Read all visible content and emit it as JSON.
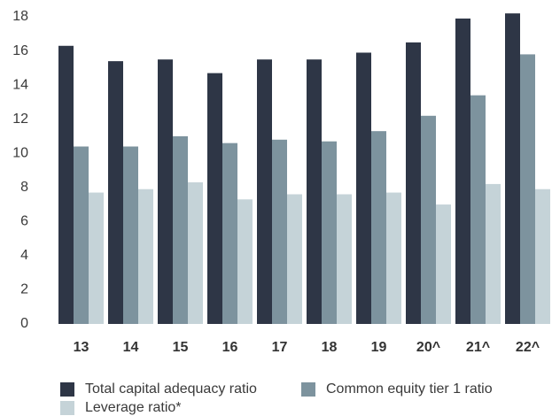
{
  "chart_data": {
    "type": "bar",
    "categories": [
      "13",
      "14",
      "15",
      "16",
      "17",
      "18",
      "19",
      "20^",
      "21^",
      "22^"
    ],
    "series": [
      {
        "name": "Total capital adequacy ratio",
        "color": "#2e3646",
        "values": [
          16.3,
          15.4,
          15.5,
          14.7,
          15.5,
          15.5,
          15.9,
          16.5,
          17.9,
          18.2
        ]
      },
      {
        "name": "Common equity tier 1 ratio",
        "color": "#7d939e",
        "values": [
          10.4,
          10.4,
          11.0,
          10.6,
          10.8,
          10.7,
          11.3,
          12.2,
          13.4,
          15.8
        ]
      },
      {
        "name": "Leverage ratio*",
        "color": "#c5d3d8",
        "values": [
          7.7,
          7.9,
          8.3,
          7.3,
          7.6,
          7.6,
          7.7,
          7.0,
          8.2,
          7.9
        ]
      }
    ],
    "ylim": [
      0,
      18
    ],
    "yticks": [
      0,
      2,
      4,
      6,
      8,
      10,
      12,
      14,
      16,
      18
    ],
    "grid": false
  }
}
